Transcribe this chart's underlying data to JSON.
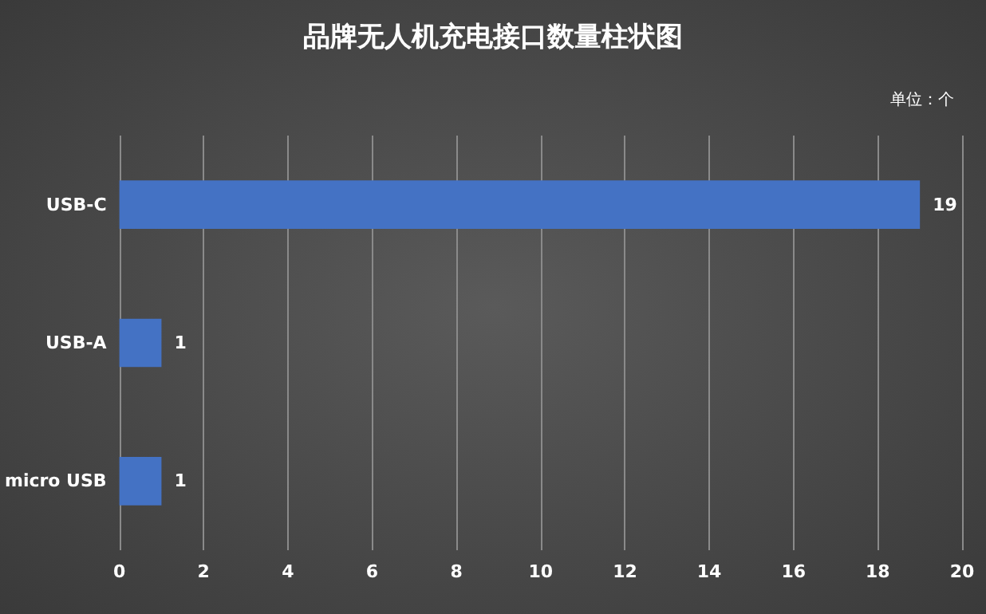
{
  "chart_data": {
    "type": "bar",
    "orientation": "horizontal",
    "title": "品牌无人机充电接口数量柱状图",
    "annotations": [
      "单位：个"
    ],
    "categories": [
      "USB-C",
      "USB-A",
      "micro USB"
    ],
    "values": [
      19,
      1,
      1
    ],
    "color": "#4472c4",
    "xlim": [
      0,
      20
    ],
    "xticks": [
      0,
      2,
      4,
      6,
      8,
      10,
      12,
      14,
      16,
      18,
      20
    ],
    "grid": "x",
    "data_labels": true
  }
}
